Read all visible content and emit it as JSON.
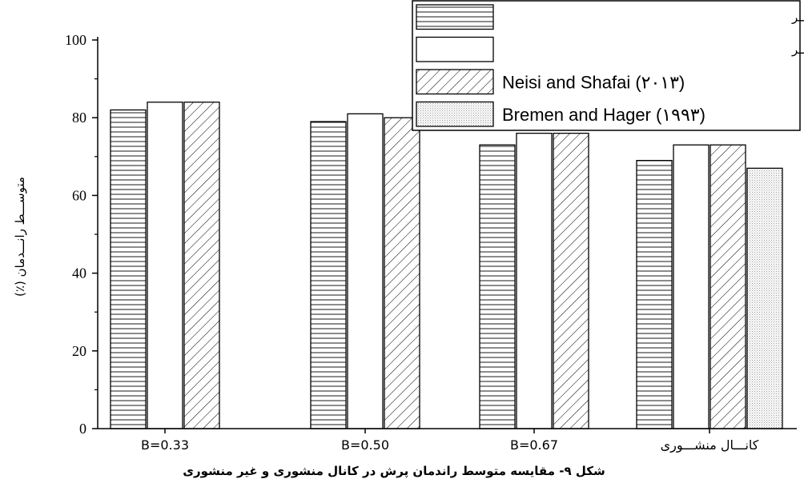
{
  "chart_data": {
    "type": "bar",
    "categories": [
      "B=0.33",
      "B=0.50",
      "B=0.67",
      "کانـــال منشـــوری"
    ],
    "series": [
      {
        "name": "بســـتر صـــاف مطالعـــه حاضـــر",
        "values": [
          82,
          79,
          73,
          69
        ],
        "pattern": "horizontal-lines"
      },
      {
        "name": "بســـتر زبـــر مطالعـــه حاضـــر",
        "values": [
          84,
          81,
          76,
          73
        ],
        "pattern": "plain"
      },
      {
        "name": "Neisi and Shafai (۲۰۱۳)",
        "values": [
          84,
          80,
          76,
          73
        ],
        "pattern": "diagonal-hatch"
      },
      {
        "name": "Bremen and Hager (۱۹۹۳)",
        "values": [
          null,
          null,
          null,
          67
        ],
        "pattern": "dotted"
      }
    ],
    "ylabel": "(٪) متوســـط رانـــدمان",
    "xlabel": "",
    "ylim": [
      0,
      100
    ],
    "yticks": [
      0,
      20,
      40,
      60,
      80,
      100
    ],
    "legend_position": "top-right",
    "grid": false,
    "caption": "شکل ۹- مقایسه متوسط راندمان پرش در کانال منشوری و غیر منشوری"
  },
  "colors": {
    "stroke": "#000000",
    "background": "#ffffff",
    "dots": "#9a9a9a"
  }
}
